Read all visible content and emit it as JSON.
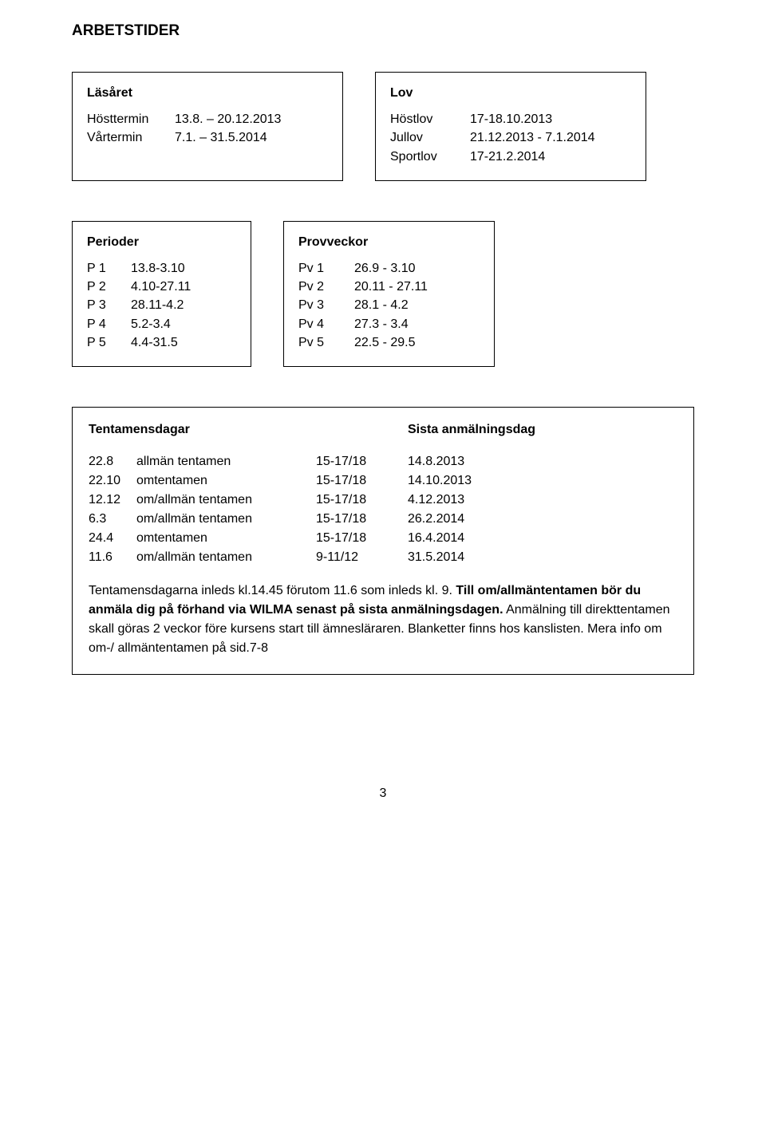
{
  "heading": "ARBETSTIDER",
  "lasaret": {
    "title": "Läsåret",
    "rows": [
      {
        "k": "Hösttermin",
        "v": "13.8. – 20.12.2013"
      },
      {
        "k": "Vårtermin",
        "v": "7.1.  –  31.5.2014"
      }
    ]
  },
  "lov": {
    "title": "Lov",
    "rows": [
      {
        "k": "Höstlov",
        "v": "17-18.10.2013"
      },
      {
        "k": "Jullov",
        "v": "21.12.2013 - 7.1.2014"
      },
      {
        "k": "Sportlov",
        "v": "17-21.2.2014"
      }
    ]
  },
  "perioder": {
    "title": "Perioder",
    "rows": [
      {
        "k": "P 1",
        "v": "13.8-3.10"
      },
      {
        "k": "P 2",
        "v": "4.10-27.11"
      },
      {
        "k": "P 3",
        "v": "28.11-4.2"
      },
      {
        "k": "P 4",
        "v": "5.2-3.4"
      },
      {
        "k": "P 5",
        "v": "4.4-31.5"
      }
    ]
  },
  "provveckor": {
    "title": "Provveckor",
    "rows": [
      {
        "k": "Pv 1",
        "v": "26.9  - 3.10"
      },
      {
        "k": "Pv 2",
        "v": "20.11 - 27.11"
      },
      {
        "k": "Pv 3",
        "v": "28.1  - 4.2"
      },
      {
        "k": "Pv 4",
        "v": "27.3  - 3.4"
      },
      {
        "k": "Pv 5",
        "v": "22.5  - 29.5"
      }
    ]
  },
  "tentamens": {
    "head_left": "Tentamensdagar",
    "head_right": "Sista anmälningsdag",
    "rows": [
      {
        "c1": "22.8",
        "c2": "allmän tentamen",
        "c3": "15-17/18",
        "c4": "14.8.2013"
      },
      {
        "c1": "22.10",
        "c2": "omtentamen",
        "c3": "15-17/18",
        "c4": "14.10.2013"
      },
      {
        "c1": "12.12",
        "c2": "om/allmän tentamen",
        "c3": "15-17/18",
        "c4": "4.12.2013"
      },
      {
        "c1": "  6.3",
        "c2": "om/allmän tentamen",
        "c3": "15-17/18",
        "c4": "26.2.2014"
      },
      {
        "c1": "24.4",
        "c2": "omtentamen",
        "c3": "15-17/18",
        "c4": "16.4.2014"
      },
      {
        "c1": "11.6",
        "c2": "om/allmän tentamen",
        "c3": "9-11/12",
        "c4": "31.5.2014"
      }
    ],
    "note_plain_1": "Tentamensdagarna inleds kl.14.45 förutom 11.6 som inleds kl. 9. ",
    "note_bold": "Till om/allmäntentamen bör du anmäla dig på förhand via WILMA senast på sista anmälningsdagen.",
    "note_plain_2": " Anmälning till direkttentamen skall göras 2 veckor före kursens start till ämnesläraren. Blanketter finns hos kanslisten. Mera info om om-/ allmäntentamen på sid.7-8"
  },
  "page_number": "3"
}
